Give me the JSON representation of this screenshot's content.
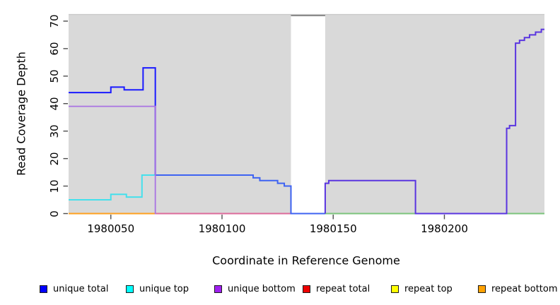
{
  "chart_data": {
    "type": "line",
    "subtype": "step-coverage",
    "title": "",
    "xlabel": "Coordinate in Reference Genome",
    "ylabel": "Read Coverage Depth",
    "xlim": [
      1980031,
      1980245
    ],
    "ylim": [
      0,
      70
    ],
    "x_ticks": [
      "1980050",
      "1980100",
      "1980150",
      "1980200"
    ],
    "x_tick_values": [
      1980050,
      1980100,
      1980150,
      1980200
    ],
    "y_ticks": [
      "0",
      "10",
      "20",
      "30",
      "40",
      "50",
      "60",
      "70"
    ],
    "y_tick_values": [
      0,
      10,
      20,
      30,
      40,
      50,
      60,
      70
    ],
    "grid": false,
    "plot_bg": "#D9D9D9",
    "masked_region": {
      "x_start": 1980131,
      "x_end": 1980146.4,
      "fill": "#FFFFFF",
      "clip_line_color": "#8C8C8C",
      "top_edge_line_color": "#C8C8C8"
    },
    "legend": {
      "position": "bottom",
      "entries": [
        {
          "label": "unique total",
          "color": "#0000FF"
        },
        {
          "label": "unique top",
          "color": "#00FFFF"
        },
        {
          "label": "unique bottom",
          "color": "#A020F0"
        },
        {
          "label": "repeat total",
          "color": "#EE0000"
        },
        {
          "label": "repeat top",
          "color": "#FFFF00"
        },
        {
          "label": "repeat bottom",
          "color": "#FFA200"
        }
      ]
    },
    "series": [
      {
        "name": "unique total",
        "color": "#0000FF",
        "steps": [
          [
            1980031,
            44
          ],
          [
            1980050,
            46
          ],
          [
            1980056,
            45
          ],
          [
            1980064.5,
            53
          ],
          [
            1980070,
            14
          ],
          [
            1980114,
            13
          ],
          [
            1980117,
            12
          ],
          [
            1980125,
            11
          ],
          [
            1980128,
            10
          ],
          [
            1980131,
            null
          ],
          [
            1980146.4,
            11
          ],
          [
            1980148,
            12
          ],
          [
            1980187,
            0
          ],
          [
            1980228,
            31
          ],
          [
            1980229.3,
            32
          ],
          [
            1980232,
            62
          ],
          [
            1980233.8,
            63
          ],
          [
            1980236,
            64
          ],
          [
            1980238.3,
            65
          ],
          [
            1980241,
            66
          ],
          [
            1980243.6,
            67
          ]
        ],
        "end_x": 1980245
      },
      {
        "name": "unique top",
        "color": "#00FFFF",
        "steps": [
          [
            1980031,
            5
          ],
          [
            1980050,
            7
          ],
          [
            1980057,
            6
          ],
          [
            1980064,
            14
          ],
          [
            1980114,
            13
          ],
          [
            1980117,
            12
          ],
          [
            1980125,
            11
          ],
          [
            1980128,
            10
          ],
          [
            1980131,
            null
          ],
          [
            1980146.4,
            0
          ]
        ],
        "end_x": 1980245
      },
      {
        "name": "unique bottom",
        "color": "#A020F0",
        "steps": [
          [
            1980031,
            39
          ],
          [
            1980070,
            0
          ],
          [
            1980131,
            null
          ],
          [
            1980146.4,
            11
          ],
          [
            1980148,
            12
          ],
          [
            1980187,
            0
          ],
          [
            1980228,
            31
          ],
          [
            1980229.3,
            32
          ],
          [
            1980232,
            62
          ],
          [
            1980233.8,
            63
          ],
          [
            1980236,
            64
          ],
          [
            1980238.3,
            65
          ],
          [
            1980241,
            66
          ],
          [
            1980243.6,
            67
          ]
        ],
        "end_x": 1980245
      },
      {
        "name": "repeat total",
        "color": "#EE0000",
        "steps": [
          [
            1980031,
            0
          ]
        ],
        "end_x": 1980245
      },
      {
        "name": "repeat top",
        "color": "#FFFF00",
        "steps": [
          [
            1980031,
            0
          ]
        ],
        "end_x": 1980245
      },
      {
        "name": "repeat bottom",
        "color": "#FFA200",
        "steps": [
          [
            1980031,
            0
          ]
        ],
        "end_x": 1980245
      }
    ],
    "render_segments": [
      {
        "name": "baseline-repeat-bottom",
        "color": "#FFA01E",
        "width": 2,
        "points": [
          [
            1980031,
            0
          ]
        ],
        "end": 1980070.3
      },
      {
        "name": "baseline-repeat-total-over-bottom",
        "color": "#DD6B9B",
        "width": 2,
        "points": [
          [
            1980070.3,
            0
          ]
        ],
        "end": 1980131
      },
      {
        "name": "baseline-top-repeat-blend-left",
        "color": "#7CC47C",
        "width": 2,
        "points": [
          [
            1980146.4,
            0
          ]
        ],
        "end": 1980187
      },
      {
        "name": "baseline-top-repeat-blend-right",
        "color": "#7CC47C",
        "width": 2,
        "points": [
          [
            1980228,
            0
          ]
        ],
        "end": 1980245
      },
      {
        "name": "unique-top-line",
        "color": "#45E0EC",
        "width": 2,
        "points": [
          [
            1980031,
            5
          ],
          [
            1980050,
            7
          ],
          [
            1980057,
            6
          ],
          [
            1980064,
            14
          ]
        ],
        "end": 1980070
      },
      {
        "name": "unique-total-left",
        "color": "#1A1AFF",
        "width": 2,
        "points": [
          [
            1980031,
            44
          ],
          [
            1980050,
            46
          ],
          [
            1980056,
            45
          ],
          [
            1980064.5,
            53
          ],
          [
            1980070,
            14
          ]
        ],
        "end": 1980070
      },
      {
        "name": "unique-total-mid",
        "color": "#3E63F2",
        "width": 2,
        "points": [
          [
            1980070,
            14
          ],
          [
            1980114,
            13
          ],
          [
            1980117,
            12
          ],
          [
            1980125,
            11
          ],
          [
            1980128,
            10
          ],
          [
            1980131,
            0
          ]
        ],
        "end": 1980146.4
      },
      {
        "name": "unique-bottom-left",
        "color": "#A973E2",
        "width": 1.8,
        "points": [
          [
            1980031,
            39
          ],
          [
            1980070,
            39
          ],
          [
            1980070,
            0
          ]
        ],
        "end": 1980070.3
      },
      {
        "name": "unique-total-bottom-overlap-right",
        "color": "#5A35E0",
        "width": 2,
        "points": [
          [
            1980146.4,
            0
          ],
          [
            1980146.4,
            11
          ],
          [
            1980148,
            12
          ],
          [
            1980187,
            0
          ],
          [
            1980228,
            0
          ],
          [
            1980228,
            31
          ],
          [
            1980229.3,
            32
          ],
          [
            1980232,
            62
          ],
          [
            1980233.8,
            63
          ],
          [
            1980236,
            64
          ],
          [
            1980238.3,
            65
          ],
          [
            1980241,
            66
          ],
          [
            1980243.6,
            67
          ]
        ],
        "end": 1980245
      }
    ]
  }
}
